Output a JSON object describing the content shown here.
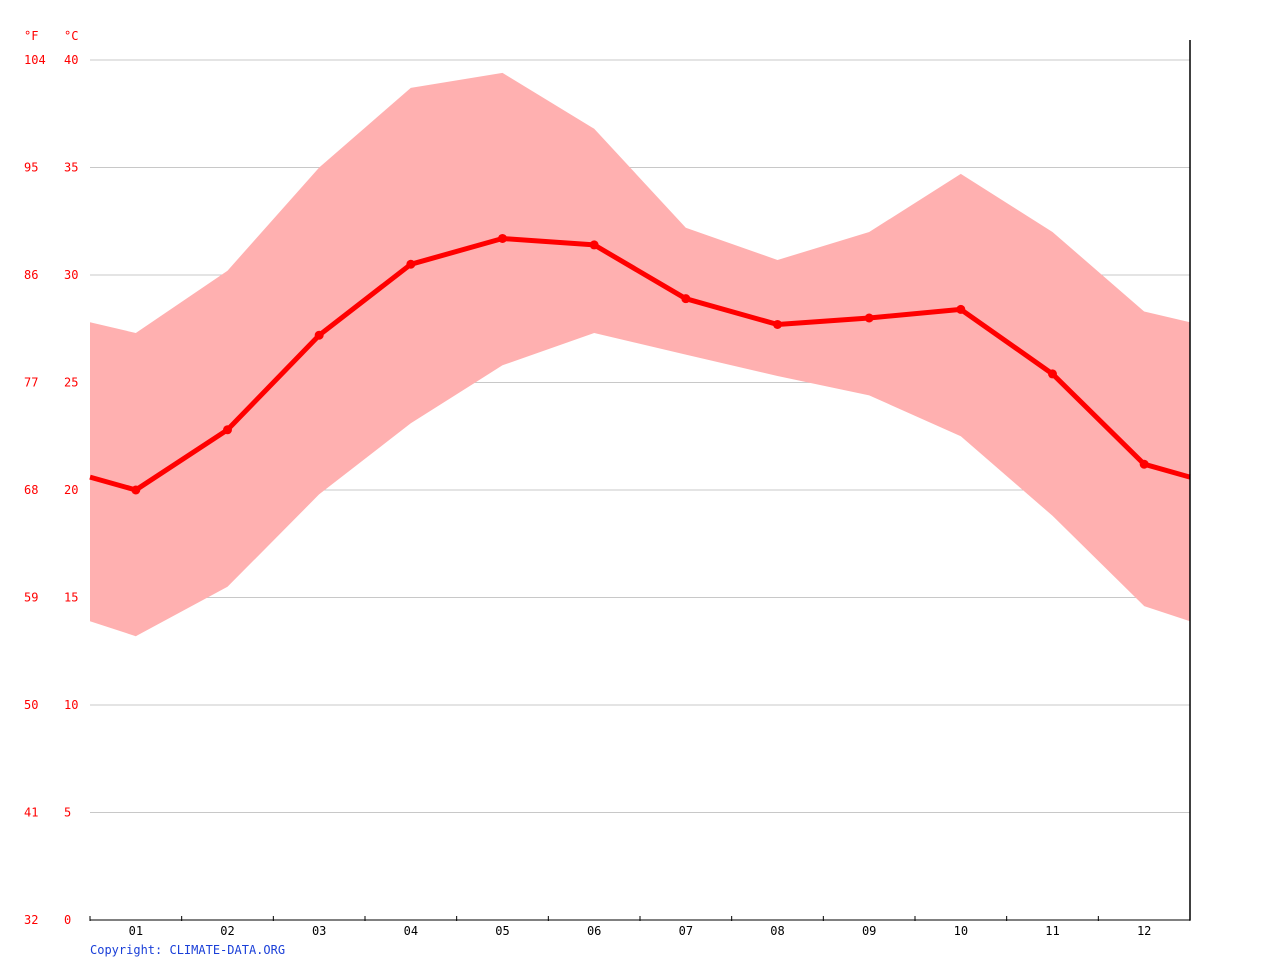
{
  "chart_data": {
    "type": "area",
    "categories": [
      "01",
      "02",
      "03",
      "04",
      "05",
      "06",
      "07",
      "08",
      "09",
      "10",
      "11",
      "12"
    ],
    "y_unit_c": "°C",
    "y_unit_f": "°F",
    "ylim": [
      0,
      40
    ],
    "yticks_c": [
      "0",
      "5",
      "10",
      "15",
      "20",
      "25",
      "30",
      "35",
      "40"
    ],
    "yticks_f": [
      "32",
      "41",
      "50",
      "59",
      "68",
      "77",
      "86",
      "95",
      "104"
    ],
    "grid": true,
    "series": [
      {
        "role": "mean",
        "values": [
          20.0,
          22.8,
          27.2,
          30.5,
          31.7,
          31.4,
          28.9,
          27.7,
          28.0,
          28.4,
          25.4,
          21.2
        ],
        "color": "#ff0000"
      },
      {
        "role": "max",
        "values": [
          27.3,
          30.2,
          35.0,
          38.7,
          39.4,
          36.8,
          32.2,
          30.7,
          32.0,
          34.7,
          32.0,
          28.3
        ],
        "color": "#ffb0b0"
      },
      {
        "role": "min",
        "values": [
          13.2,
          15.5,
          19.8,
          23.1,
          25.8,
          27.3,
          26.3,
          25.3,
          24.4,
          22.5,
          18.8,
          14.6
        ],
        "color": "#ffb0b0"
      }
    ]
  },
  "footer": {
    "copyright": "Copyright: CLIMATE-DATA.ORG"
  },
  "colors": {
    "axis_label": "#ff0000",
    "x_label": "#000000",
    "grid": "#c8c8c8",
    "band": "#ffb0b0",
    "line": "#ff0000",
    "copyright": "#0000ff"
  }
}
